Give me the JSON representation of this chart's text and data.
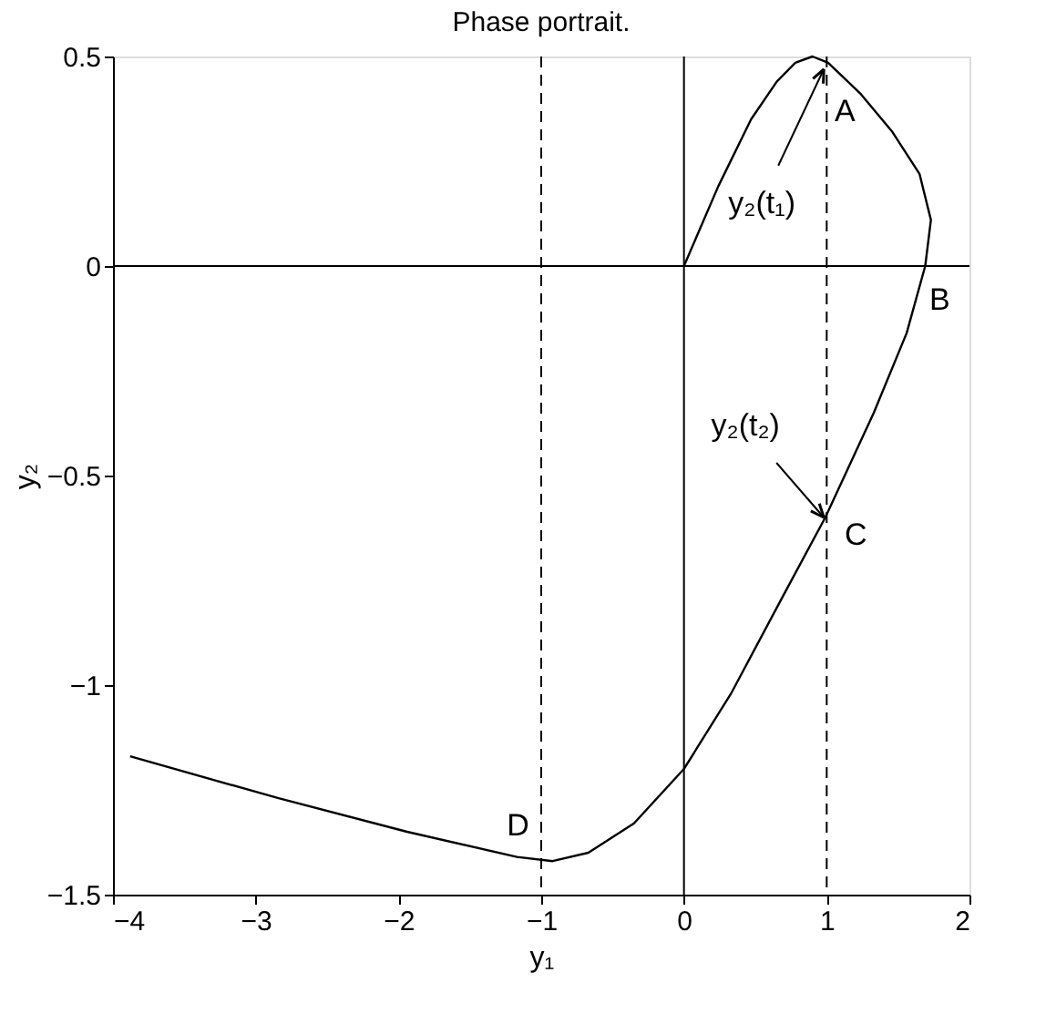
{
  "chart_data": {
    "type": "line",
    "title": "Phase portrait.",
    "xlabel": "y₁",
    "ylabel": "y₂",
    "xlim": [
      -4,
      2
    ],
    "ylim": [
      -1.5,
      0.5
    ],
    "xticks": [
      -4,
      -3,
      -2,
      -1,
      0,
      1,
      2
    ],
    "yticks": [
      -1.5,
      -1,
      -0.5,
      0,
      0.5
    ],
    "grid": false,
    "marker": "none",
    "line_style": "solid",
    "series": [
      {
        "color": "#000000",
        "x": [
          0,
          0.24,
          0.47,
          0.65,
          0.78,
          0.9,
          1.01,
          1.24,
          1.46,
          1.65,
          1.73,
          1.69,
          1.56,
          1.33,
          0.99,
          0.69,
          0.33,
          0,
          -0.35,
          -0.67,
          -0.92,
          -1.17,
          -1.94,
          -2.84,
          -3.88
        ],
        "values": [
          0,
          0.19,
          0.35,
          0.44,
          0.485,
          0.5,
          0.485,
          0.41,
          0.32,
          0.22,
          0.11,
          0,
          -0.16,
          -0.35,
          -0.6,
          -0.79,
          -1.02,
          -1.2,
          -1.33,
          -1.4,
          -1.42,
          -1.41,
          -1.35,
          -1.27,
          -1.17
        ]
      }
    ],
    "ref_lines": [
      {
        "axis": "x",
        "value": 0,
        "line_style": "solid",
        "color": "#000000"
      },
      {
        "axis": "y",
        "value": 0,
        "line_style": "solid",
        "color": "#000000"
      },
      {
        "axis": "x",
        "value": -1,
        "line_style": "dashed",
        "color": "#000000"
      },
      {
        "axis": "x",
        "value": 1,
        "line_style": "dashed",
        "color": "#000000"
      }
    ],
    "annotations": [
      {
        "text": "A",
        "x": 1,
        "y": 0.485
      },
      {
        "text": "B",
        "x": 1.69,
        "y": 0
      },
      {
        "text": "C",
        "x": 1,
        "y": -0.6
      },
      {
        "text": "D",
        "x": -0.92,
        "y": -1.42
      },
      {
        "text": "y₂(t₁)",
        "x": 0.98,
        "y": 0.47
      },
      {
        "text": "y₂(t₂)",
        "x": 0.98,
        "y": -0.6
      }
    ]
  }
}
